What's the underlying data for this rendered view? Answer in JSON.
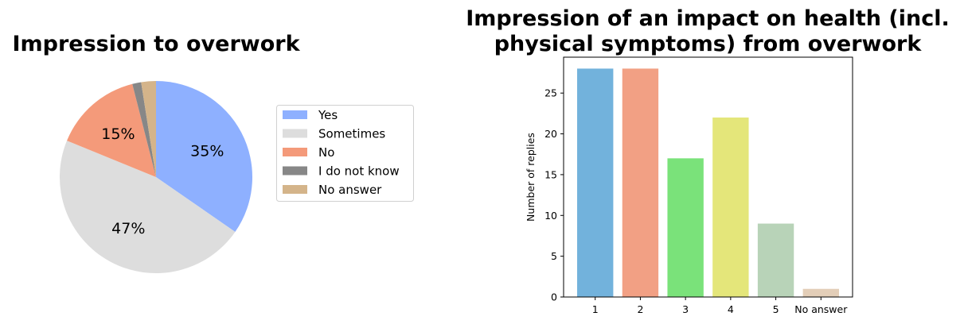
{
  "chart_data": [
    {
      "type": "pie",
      "title": "Impression to overwork",
      "categories": [
        "Yes",
        "Sometimes",
        "No",
        "I do not know",
        "No answer"
      ],
      "values": [
        35,
        47,
        15,
        1.5,
        2.5
      ],
      "labels_shown": [
        "35%",
        "47%",
        "15%",
        "",
        ""
      ],
      "colors": [
        "#8eb0ff",
        "#dddddd",
        "#f49a7a",
        "#878787",
        "#d4b48a"
      ],
      "start_angle_deg": 90,
      "direction": "clockwise",
      "legend": "right"
    },
    {
      "type": "bar",
      "title_lines": [
        "Impression of an impact on health (incl.",
        "physical symptoms) from overwork"
      ],
      "categories": [
        "1",
        "2",
        "3",
        "4",
        "5",
        "No answer"
      ],
      "values": [
        28,
        28,
        17,
        22,
        9,
        1
      ],
      "colors": [
        "#72b2dc",
        "#f2a084",
        "#7ae27a",
        "#e4e67a",
        "#b8d3b8",
        "#e3ceb8"
      ],
      "xlabel": "",
      "ylabel": "Number of replies",
      "ylim": [
        0,
        29.4
      ],
      "yticks": [
        0,
        5,
        10,
        15,
        20,
        25
      ],
      "grid": false
    }
  ]
}
